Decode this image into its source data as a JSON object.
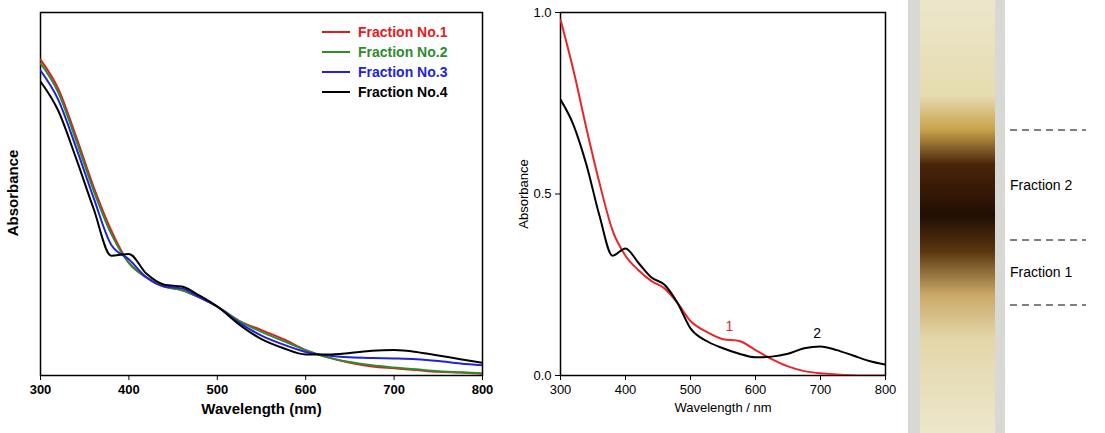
{
  "chart_data": [
    {
      "type": "line",
      "xlabel": "Wavelength (nm)",
      "ylabel": "Absorbance",
      "xlim": [
        300,
        800
      ],
      "xticks": [
        300,
        400,
        500,
        600,
        700,
        800
      ],
      "ylim": [
        0,
        1
      ],
      "tick_labels": "x",
      "legend": "top-right",
      "x": [
        300,
        320,
        340,
        360,
        380,
        400,
        420,
        440,
        460,
        480,
        500,
        525,
        550,
        575,
        600,
        625,
        650,
        675,
        700,
        725,
        750,
        775,
        800
      ],
      "series": [
        {
          "name": "Fraction No.1",
          "color": "#e41a1c",
          "values": [
            0.87,
            0.79,
            0.66,
            0.52,
            0.4,
            0.31,
            0.27,
            0.245,
            0.235,
            0.215,
            0.19,
            0.15,
            0.125,
            0.1,
            0.07,
            0.05,
            0.035,
            0.025,
            0.02,
            0.015,
            0.01,
            0.008,
            0.005
          ]
        },
        {
          "name": "Fraction No.2",
          "color": "#2e8b2e",
          "values": [
            0.86,
            0.78,
            0.65,
            0.51,
            0.39,
            0.31,
            0.27,
            0.245,
            0.235,
            0.215,
            0.19,
            0.15,
            0.12,
            0.095,
            0.07,
            0.05,
            0.037,
            0.028,
            0.022,
            0.017,
            0.012,
            0.009,
            0.006
          ]
        },
        {
          "name": "Fraction No.3",
          "color": "#2222dd",
          "values": [
            0.84,
            0.76,
            0.63,
            0.49,
            0.36,
            0.32,
            0.27,
            0.245,
            0.24,
            0.215,
            0.19,
            0.145,
            0.11,
            0.085,
            0.065,
            0.055,
            0.05,
            0.048,
            0.047,
            0.045,
            0.04,
            0.033,
            0.028
          ]
        },
        {
          "name": "Fraction No.4",
          "color": "#000000",
          "values": [
            0.81,
            0.73,
            0.6,
            0.46,
            0.33,
            0.335,
            0.28,
            0.25,
            0.245,
            0.22,
            0.19,
            0.14,
            0.1,
            0.075,
            0.058,
            0.058,
            0.062,
            0.068,
            0.07,
            0.065,
            0.055,
            0.045,
            0.035
          ]
        }
      ]
    },
    {
      "type": "line",
      "xlabel": "Wavelength / nm",
      "ylabel": "Absorbance",
      "xlim": [
        300,
        800
      ],
      "xticks": [
        300,
        400,
        500,
        600,
        700,
        800
      ],
      "ylim": [
        0,
        1
      ],
      "yticks": [
        0,
        0.5,
        1
      ],
      "x": [
        300,
        320,
        340,
        360,
        380,
        400,
        420,
        440,
        460,
        480,
        500,
        525,
        550,
        575,
        600,
        625,
        650,
        675,
        700,
        725,
        750,
        775,
        800
      ],
      "series": [
        {
          "color": "#e8262a",
          "values": [
            0.98,
            0.84,
            0.68,
            0.53,
            0.4,
            0.33,
            0.29,
            0.26,
            0.24,
            0.2,
            0.15,
            0.12,
            0.1,
            0.095,
            0.07,
            0.045,
            0.025,
            0.012,
            0.006,
            0.003,
            0.001,
            0,
            0
          ]
        },
        {
          "color": "#000000",
          "values": [
            0.76,
            0.69,
            0.58,
            0.44,
            0.33,
            0.35,
            0.31,
            0.27,
            0.25,
            0.2,
            0.13,
            0.095,
            0.075,
            0.06,
            0.05,
            0.052,
            0.06,
            0.075,
            0.08,
            0.07,
            0.055,
            0.04,
            0.03
          ]
        }
      ],
      "annotations": [
        {
          "text": "1",
          "x": 560,
          "y": 0.135,
          "color": "#e8262a"
        },
        {
          "text": "2",
          "x": 695,
          "y": 0.115,
          "color": "#000000"
        }
      ]
    },
    {
      "type": "image",
      "labels": [
        "Fraction 2",
        "Fraction 1"
      ]
    }
  ]
}
